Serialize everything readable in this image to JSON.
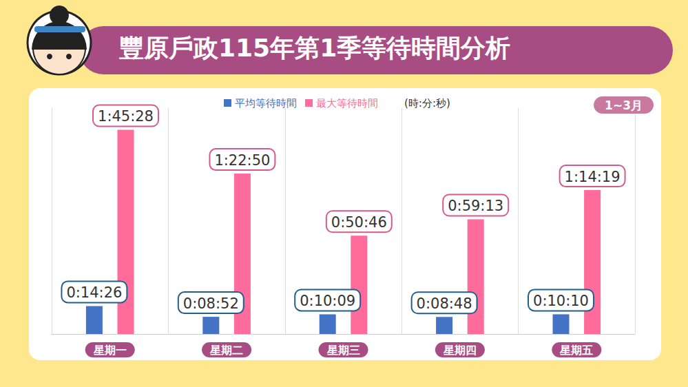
{
  "chart_data": {
    "type": "bar",
    "title": "豐原戶政115年第1季等待時間分析",
    "subtitle": "1~3月",
    "ylabel": "(時:分:秒)",
    "categories": [
      "星期一",
      "星期二",
      "星期三",
      "星期四",
      "星期五"
    ],
    "series": [
      {
        "name": "平均等待時間",
        "color": "#4472c4",
        "values": [
          866,
          532,
          609,
          528,
          610
        ],
        "value_labels": [
          "0:14:26",
          "0:08:52",
          "0:10:09",
          "0:08:48",
          "0:10:10"
        ]
      },
      {
        "name": "最大等待時間",
        "color": "#ff6b9a",
        "values": [
          6328,
          4970,
          3046,
          3553,
          4459
        ],
        "value_labels": [
          "1:45:28",
          "1:22:50",
          "0:50:46",
          "0:59:13",
          "1:14:19"
        ]
      }
    ],
    "ylim": [
      0,
      7000
    ],
    "grid": true,
    "legend": "top",
    "data_labels": true,
    "tick_labels": "x"
  }
}
